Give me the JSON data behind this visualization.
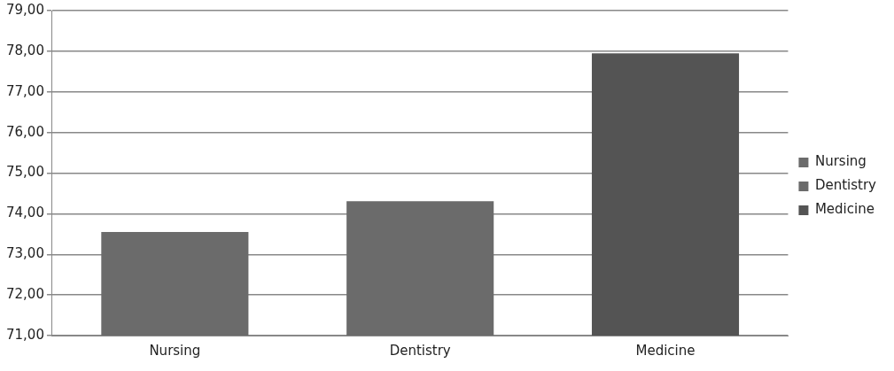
{
  "chart_data": {
    "type": "bar",
    "categories": [
      "Nursing",
      "Dentistry",
      "Medicine"
    ],
    "series": [
      {
        "name": "Nursing",
        "color": "#6b6b6b",
        "values": [
          73.55,
          null,
          null
        ]
      },
      {
        "name": "Dentistry",
        "color": "#6b6b6b",
        "values": [
          null,
          74.31,
          null
        ]
      },
      {
        "name": "Medicine",
        "color": "#545454",
        "values": [
          null,
          null,
          77.95
        ]
      }
    ],
    "ylim": [
      71,
      79
    ],
    "yticks": [
      {
        "value": 71,
        "label": "71,00"
      },
      {
        "value": 72,
        "label": "72,00"
      },
      {
        "value": 73,
        "label": "73,00"
      },
      {
        "value": 74,
        "label": "74,00"
      },
      {
        "value": 75,
        "label": "75,00"
      },
      {
        "value": 76,
        "label": "76,00"
      },
      {
        "value": 77,
        "label": "77,00"
      },
      {
        "value": 78,
        "label": "78,00"
      },
      {
        "value": 79,
        "label": "79,00"
      }
    ],
    "grid": "y",
    "legend": "right"
  }
}
